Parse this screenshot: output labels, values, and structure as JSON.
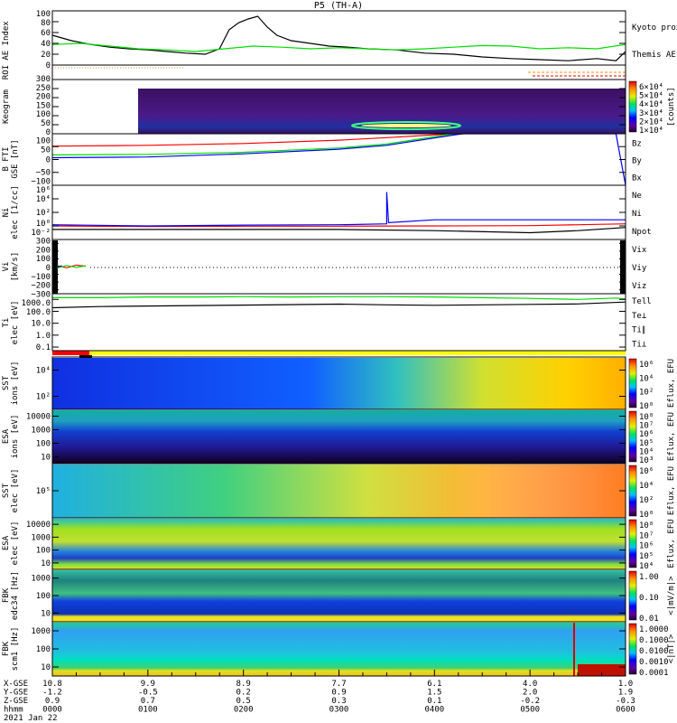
{
  "title": "P5 (TH-A)",
  "colors": {
    "red": "#ff0000",
    "green": "#00dd00",
    "blue": "#0000ff",
    "black": "#000000",
    "orange": "#ff8c00",
    "yellow": "#ffff00"
  },
  "chart_data": [
    {
      "id": "ae",
      "type": "line",
      "ylabel": "AE Index",
      "ylim": [
        0,
        100
      ],
      "ticks": [
        "100",
        "80",
        "60",
        "40",
        "20",
        "0"
      ],
      "tickvals": [
        100,
        80,
        60,
        40,
        20,
        0
      ],
      "legend": [
        "Kyoto proxy AE",
        "Themis AE"
      ],
      "series": [
        {
          "name": "Themis AE",
          "color": "#000000",
          "x": [
            0,
            0.2,
            0.4,
            0.6,
            0.8,
            1.0,
            1.2,
            1.4,
            1.6,
            1.75,
            1.85,
            1.95,
            2.05,
            2.15,
            2.25,
            2.35,
            2.5,
            2.7,
            2.9,
            3.1,
            3.3,
            3.6,
            3.9,
            4.2,
            4.5,
            4.8,
            5.1,
            5.4,
            5.7,
            5.9,
            6.0
          ],
          "y": [
            55,
            45,
            38,
            33,
            30,
            28,
            25,
            22,
            20,
            30,
            65,
            78,
            85,
            90,
            70,
            55,
            45,
            40,
            35,
            33,
            30,
            28,
            22,
            20,
            15,
            12,
            10,
            8,
            12,
            8,
            25
          ]
        },
        {
          "name": "Kyoto proxy AE",
          "color": "#00dd00",
          "x": [
            0,
            0.3,
            0.6,
            0.9,
            1.2,
            1.5,
            1.8,
            2.1,
            2.4,
            2.7,
            3.0,
            3.3,
            3.6,
            3.9,
            4.2,
            4.5,
            4.8,
            5.1,
            5.4,
            5.7,
            6.0
          ],
          "y": [
            38,
            40,
            35,
            30,
            28,
            25,
            30,
            35,
            33,
            30,
            32,
            30,
            28,
            30,
            33,
            36,
            35,
            30,
            32,
            30,
            38
          ]
        }
      ]
    },
    {
      "id": "roi",
      "type": "bar",
      "ylabel": "ROI"
    },
    {
      "id": "keogram",
      "type": "heatmap",
      "ylabel": "Keogram",
      "ylim": [
        0,
        300
      ],
      "ticks": [
        "300",
        "250",
        "200",
        "150",
        "100",
        "50",
        "0"
      ],
      "tickvals": [
        300,
        250,
        200,
        150,
        100,
        50,
        0
      ],
      "colorbar": {
        "label": "[counts]",
        "ticks": [
          "6×10⁴",
          "5×10⁴",
          "4×10⁴",
          "3×10⁴",
          "2×10⁴",
          "1×10⁴"
        ]
      },
      "data_start_hour": 0.9,
      "arc_hour": 3.3,
      "arc_mlat": 55
    },
    {
      "id": "bfti",
      "type": "line",
      "ylabel": "B FTI",
      "units": "GSE [nT]",
      "ylim": [
        -100,
        100
      ],
      "ticks": [
        "100",
        "50",
        "0",
        "−50",
        "−100"
      ],
      "tickvals": [
        100,
        50,
        0,
        -50,
        -100
      ],
      "legend": [
        "Bz",
        "By",
        "Bx"
      ],
      "series": [
        {
          "name": "Bz",
          "color": "#ff0000",
          "x": [
            0,
            1,
            2,
            3,
            3.5,
            4.2,
            4.3
          ],
          "y": [
            52,
            55,
            62,
            75,
            85,
            100,
            100
          ]
        },
        {
          "name": "By",
          "color": "#00dd00",
          "x": [
            0,
            1,
            2,
            3,
            3.5,
            4.2,
            4.3
          ],
          "y": [
            18,
            20,
            28,
            45,
            60,
            100,
            100
          ]
        },
        {
          "name": "Bx",
          "color": "#0000ff",
          "x": [
            0,
            1,
            2,
            3,
            3.5,
            4.2,
            4.3,
            5.9,
            5.95,
            6.0
          ],
          "y": [
            7,
            10,
            22,
            40,
            55,
            95,
            100,
            100,
            0,
            -100
          ]
        }
      ]
    },
    {
      "id": "ni",
      "type": "line",
      "log": true,
      "ylabel": "Ni",
      "units": "elec [1/cc]",
      "ylim": [
        0.01,
        1000000
      ],
      "ticks": [
        "10⁶",
        "10⁴",
        "10²",
        "10⁰",
        "10⁻²"
      ],
      "tickvals": [
        1000000,
        10000,
        100,
        1,
        0.01
      ],
      "legend": [
        "Ne",
        "Ni",
        "Npot"
      ],
      "series": [
        {
          "name": "Ne",
          "color": "#ff0000",
          "x": [
            0,
            1,
            2,
            3,
            4,
            5,
            6
          ],
          "y": [
            1,
            0.8,
            0.9,
            0.9,
            1,
            1.1,
            2
          ]
        },
        {
          "name": "Ni",
          "color": "#000000",
          "x": [
            0,
            1,
            2,
            3,
            4,
            5,
            5.5,
            6
          ],
          "y": [
            0.3,
            0.3,
            0.3,
            0.3,
            0.2,
            0.1,
            0.2,
            0.6
          ]
        },
        {
          "name": "Npot",
          "color": "#0000ff",
          "x": [
            0,
            1,
            2,
            3,
            3.5,
            3.5,
            3.52,
            4,
            5,
            6
          ],
          "y": [
            1.5,
            1,
            1.3,
            1.5,
            2,
            100000.0,
            3,
            8,
            8,
            8
          ]
        }
      ]
    },
    {
      "id": "vi",
      "type": "line",
      "ylabel": "Vi",
      "units": "[km/s]",
      "ylim": [
        -350,
        350
      ],
      "ticks": [
        "300",
        "200",
        "100",
        "0",
        "−100",
        "−200",
        "−300"
      ],
      "tickvals": [
        300,
        200,
        100,
        0,
        -100,
        -200,
        -300
      ],
      "legend": [
        "Vix",
        "Viy",
        "Viz"
      ],
      "series": [
        {
          "name": "Viz",
          "color": "#ff0000",
          "x": [
            0.05,
            0.15,
            0.25,
            0.35
          ],
          "y": [
            10,
            -15,
            20,
            5
          ]
        },
        {
          "name": "Viy",
          "color": "#00dd00",
          "x": [
            0.05,
            0.15,
            0.25,
            0.35
          ],
          "y": [
            -20,
            15,
            -10,
            10
          ]
        },
        {
          "name": "Vix",
          "color": "#0000ff",
          "x": [
            0.05,
            0.1
          ],
          "y": [
            -5,
            10
          ]
        }
      ]
    },
    {
      "id": "ti",
      "type": "line",
      "log": true,
      "ylabel": "Ti",
      "units": "elec [eV]",
      "ylim": [
        0.05,
        3000
      ],
      "ticks": [
        "1000.0",
        "100.0",
        "10.0",
        "1.0",
        "0.1"
      ],
      "tickvals": [
        1000,
        100,
        10,
        1,
        0.1
      ],
      "legend": [
        "Tell",
        "Te⊥",
        "Ti∥",
        "Ti⊥"
      ],
      "series": [
        {
          "name": "Ti∥",
          "color": "#00dd00",
          "x": [
            0,
            0.5,
            1,
            1.5,
            2,
            2.5,
            3,
            3.5,
            4,
            4.5,
            5,
            5.5,
            5.9,
            6
          ],
          "y": [
            1400,
            1400,
            1600,
            1600,
            1700,
            1600,
            1700,
            1700,
            1600,
            1400,
            1200,
            1000,
            1300,
            1100
          ]
        },
        {
          "name": "Tell",
          "color": "#000000",
          "x": [
            0,
            0.5,
            1,
            2,
            3,
            3.5,
            4,
            4.5,
            5,
            5.5,
            6
          ],
          "y": [
            200,
            250,
            280,
            330,
            400,
            350,
            320,
            350,
            380,
            420,
            600
          ]
        }
      ]
    },
    {
      "id": "sst_ion",
      "type": "heatmap",
      "ylabel": "SST",
      "units": "ions [eV]",
      "ticks": [
        "10⁴",
        "10²"
      ],
      "colorbar": {
        "label": "Eflux, EFU",
        "ticks": [
          "10⁶",
          "10⁴",
          "10²",
          "10⁰"
        ]
      }
    },
    {
      "id": "esa_ion",
      "type": "heatmap",
      "ylabel": "ESA",
      "units": "ions [eV]",
      "ticks": [
        "10000",
        "1000",
        "100",
        "10"
      ],
      "colorbar": {
        "label": "Eflux, EFU",
        "ticks": [
          "10⁸",
          "10⁷",
          "10⁶",
          "10⁵",
          "10⁴",
          "10³"
        ]
      }
    },
    {
      "id": "sst_elec",
      "type": "heatmap",
      "ylabel": "SST",
      "units": "elec [eV]",
      "ticks": [
        "10⁵"
      ],
      "colorbar": {
        "label": "Eflux, EFU",
        "ticks": [
          "10⁶",
          "10⁴",
          "10²",
          "10⁰"
        ]
      }
    },
    {
      "id": "esa_elec",
      "type": "heatmap",
      "ylabel": "ESA",
      "units": "elec [eV]",
      "ticks": [
        "10000",
        "1000",
        "100",
        "10"
      ],
      "colorbar": {
        "label": "Eflux, EFU",
        "ticks": [
          "10⁸",
          "10⁷",
          "10⁶",
          "10⁵",
          "10⁴"
        ]
      }
    },
    {
      "id": "fbk_e",
      "type": "heatmap",
      "ylabel": "FBK",
      "units": "edc34 [Hz]",
      "ticks": [
        "1000",
        "100",
        "10"
      ],
      "colorbar": {
        "label": "<|mV/m|>",
        "ticks": [
          "1.00",
          "0.10",
          "0.01"
        ]
      }
    },
    {
      "id": "fbk_b",
      "type": "heatmap",
      "ylabel": "FBK",
      "units": "scm1 [Hz]",
      "ticks": [
        "1000",
        "100",
        "10"
      ],
      "colorbar": {
        "label": "<|nT|>",
        "ticks": [
          "1.0000",
          "0.1000",
          "0.0100",
          "0.0010",
          "0.0001"
        ]
      }
    }
  ],
  "xaxis": {
    "row_labels": [
      "X-GSE",
      "Y-GSE",
      "Z-GSE",
      "hhmm"
    ],
    "date": "2021 Jan 22",
    "columns": [
      {
        "x": "10.8",
        "y": "-1.2",
        "z": "0.9",
        "t": "0000"
      },
      {
        "x": "9.9",
        "y": "-0.5",
        "z": "0.7",
        "t": "0100"
      },
      {
        "x": "8.9",
        "y": "0.2",
        "z": "0.5",
        "t": "0200"
      },
      {
        "x": "7.7",
        "y": "0.9",
        "z": "0.3",
        "t": "0300"
      },
      {
        "x": "6.1",
        "y": "1.5",
        "z": "0.1",
        "t": "0400"
      },
      {
        "x": "4.0",
        "y": "2.0",
        "z": "-0.2",
        "t": "0500"
      },
      {
        "x": "1.0",
        "y": "1.9",
        "z": "-0.3",
        "t": "0600"
      }
    ]
  }
}
